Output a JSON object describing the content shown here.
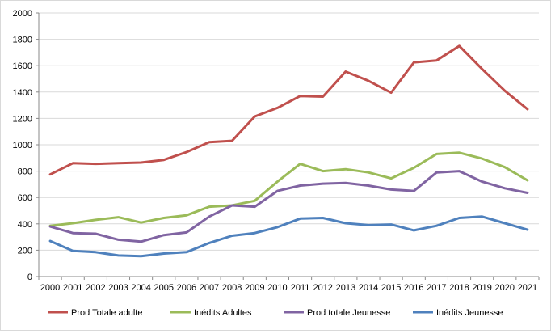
{
  "chart_data": {
    "type": "line",
    "title": "",
    "xlabel": "",
    "ylabel": "",
    "x": [
      "2000",
      "2001",
      "2002",
      "2003",
      "2004",
      "2005",
      "2006",
      "2007",
      "2008",
      "2009",
      "2010",
      "2011",
      "2012",
      "2013",
      "2014",
      "2015",
      "2016",
      "2017",
      "2018",
      "2019",
      "2020",
      "2021"
    ],
    "ylim": [
      0,
      2000
    ],
    "yticks": [
      0,
      200,
      400,
      600,
      800,
      1000,
      1200,
      1400,
      1600,
      1800,
      2000
    ],
    "grid": "horizontal",
    "legend_position": "bottom",
    "series": [
      {
        "name": "Prod Totale adulte",
        "color": "#c0504d",
        "values": [
          775,
          860,
          855,
          860,
          865,
          885,
          945,
          1020,
          1030,
          1215,
          1280,
          1370,
          1365,
          1555,
          1485,
          1395,
          1625,
          1640,
          1750,
          1575,
          1410,
          1270
        ]
      },
      {
        "name": "Inédits Adultes",
        "color": "#9bbb59",
        "values": [
          385,
          405,
          430,
          450,
          410,
          445,
          465,
          530,
          540,
          575,
          720,
          855,
          800,
          815,
          790,
          745,
          825,
          930,
          940,
          895,
          830,
          730
        ]
      },
      {
        "name": "Prod totale Jeunesse",
        "color": "#8064a2",
        "values": [
          380,
          330,
          325,
          280,
          265,
          315,
          335,
          455,
          540,
          530,
          650,
          690,
          705,
          710,
          690,
          660,
          650,
          790,
          800,
          720,
          670,
          635
        ]
      },
      {
        "name": "Inédits Jeunesse",
        "color": "#4f81bd",
        "values": [
          270,
          195,
          185,
          160,
          155,
          175,
          185,
          255,
          310,
          330,
          375,
          440,
          445,
          405,
          390,
          395,
          350,
          385,
          445,
          455,
          405,
          355
        ]
      }
    ]
  }
}
